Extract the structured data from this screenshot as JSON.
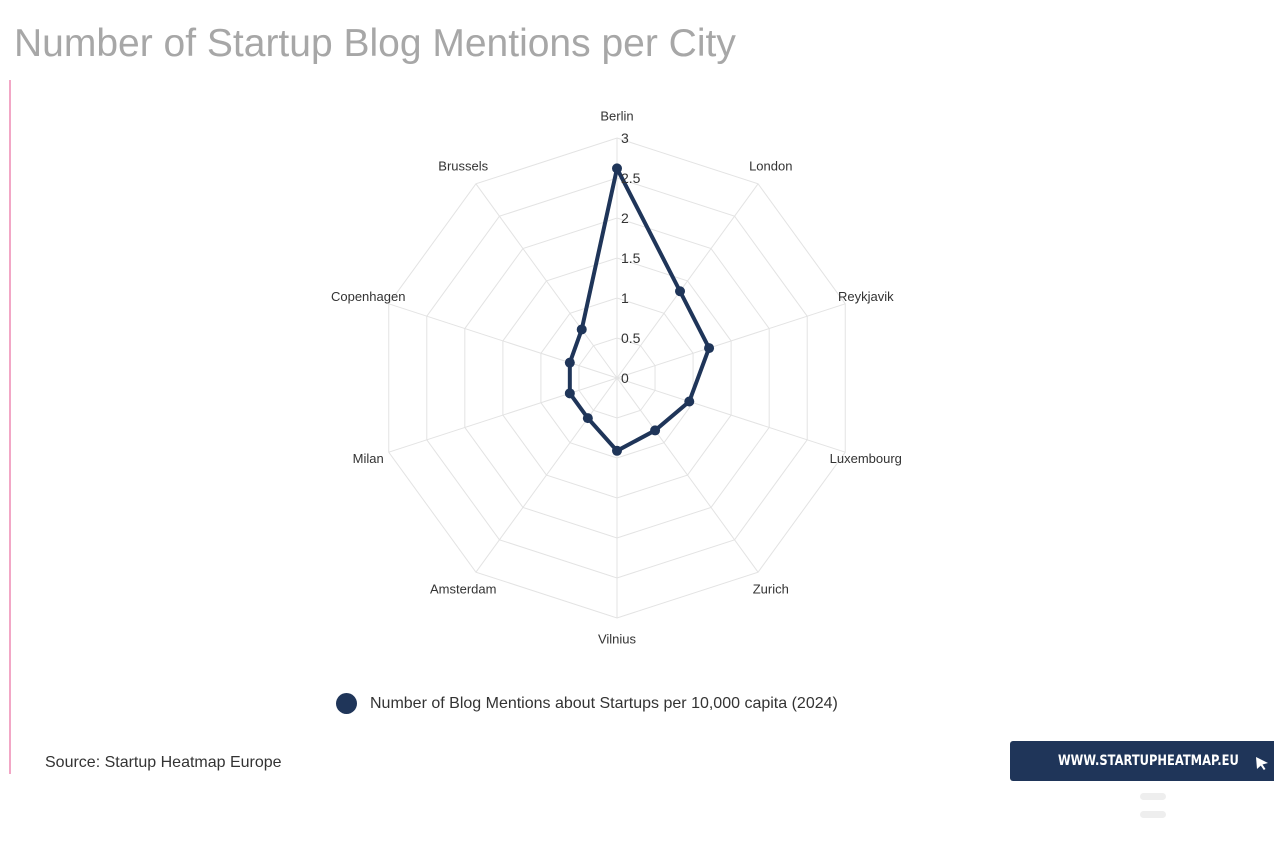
{
  "title": "Number of Startup Blog Mentions per City",
  "chart_data": {
    "type": "radar",
    "title": "Number of Startup Blog Mentions per City",
    "categories": [
      "Berlin",
      "London",
      "Reykjavik",
      "Luxembourg",
      "Zurich",
      "Vilnius",
      "Amsterdam",
      "Milan",
      "Copenhagen",
      "Brussels"
    ],
    "series": [
      {
        "name": "Number of Blog Mentions about Startups per 10,000 capita (2024)",
        "values": [
          2.62,
          1.34,
          1.21,
          0.95,
          0.81,
          0.91,
          0.62,
          0.62,
          0.62,
          0.75
        ],
        "color": "#1f3559"
      }
    ],
    "radial_ticks": [
      "0",
      "0.5",
      "1",
      "1.5",
      "2",
      "2.5",
      "3"
    ],
    "range": [
      0,
      3
    ],
    "grid": true
  },
  "legend": {
    "label": "Number of Blog Mentions about Startups per 10,000 capita (2024)",
    "color": "#1f3559"
  },
  "source": "Source: Startup Heatmap Europe",
  "badge": {
    "label": "WWW.STARTUPHEATMAP.EU",
    "icon": "cursor-arrow-icon",
    "color": "#1f3559"
  },
  "colors": {
    "accent": "#f2a7c6",
    "title": "#a7a7a7",
    "grid": "#e3e3e3"
  }
}
